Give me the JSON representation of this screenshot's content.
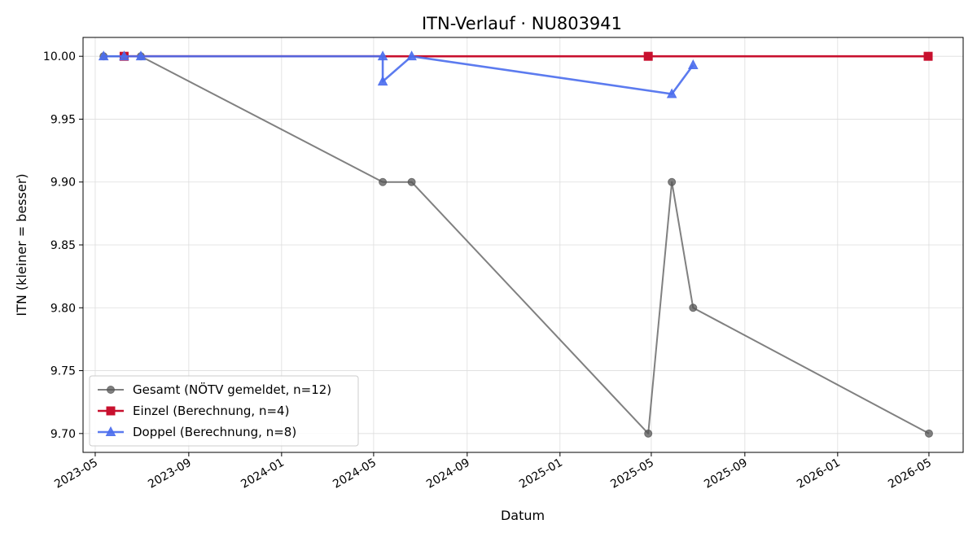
{
  "chart_data": {
    "type": "line",
    "title": "ITN-Verlauf · NU803941",
    "xlabel": "Datum",
    "ylabel": "ITN  (kleiner = besser)",
    "ylim": [
      9.685,
      10.015
    ],
    "xlim": [
      "2023-04-15",
      "2026-06-15"
    ],
    "x_ticks": [
      "2023-05-01",
      "2023-09-01",
      "2024-01-01",
      "2024-05-01",
      "2024-09-01",
      "2025-01-01",
      "2025-05-01",
      "2025-09-01",
      "2026-01-01",
      "2026-05-01"
    ],
    "x_tick_labels": [
      "2023-05",
      "2023-09",
      "2024-01",
      "2024-05",
      "2024-09",
      "2025-01",
      "2025-05",
      "2025-09",
      "2026-01",
      "2026-05"
    ],
    "y_ticks": [
      9.7,
      9.75,
      9.8,
      9.85,
      9.9,
      9.95,
      10.0
    ],
    "y_tick_labels": [
      "9.70",
      "9.75",
      "9.80",
      "9.85",
      "9.90",
      "9.95",
      "10.00"
    ],
    "grid": true,
    "legend_position": "lower-left",
    "series": [
      {
        "name": "Gesamt (NÖTV gemeldet, n=12)",
        "color": "#555555",
        "opacity": 0.75,
        "marker": "circle",
        "points": [
          [
            "2023-05-12",
            10.0
          ],
          [
            "2023-06-08",
            10.0
          ],
          [
            "2023-06-30",
            10.0
          ],
          [
            "2024-05-13",
            9.9
          ],
          [
            "2024-06-20",
            9.9
          ],
          [
            "2025-04-27",
            9.7
          ],
          [
            "2025-05-28",
            9.9
          ],
          [
            "2025-06-25",
            9.8
          ],
          [
            "2026-05-01",
            9.7
          ]
        ]
      },
      {
        "name": "Einzel (Berechnung, n=4)",
        "color": "#c8102e",
        "opacity": 1,
        "marker": "square",
        "points": [
          [
            "2023-06-08",
            10.0
          ],
          [
            "2025-04-27",
            10.0
          ],
          [
            "2026-04-30",
            10.0
          ]
        ]
      },
      {
        "name": "Doppel (Berechnung, n=8)",
        "color": "#4a6ded",
        "opacity": 0.9,
        "marker": "triangle",
        "points": [
          [
            "2023-05-12",
            10.0
          ],
          [
            "2023-06-08",
            10.0
          ],
          [
            "2023-06-30",
            10.0
          ],
          [
            "2024-05-13",
            10.0
          ],
          [
            "2024-05-13",
            9.98
          ],
          [
            "2024-06-20",
            10.0
          ],
          [
            "2025-05-28",
            9.97
          ],
          [
            "2025-06-25",
            9.993
          ]
        ]
      }
    ]
  }
}
